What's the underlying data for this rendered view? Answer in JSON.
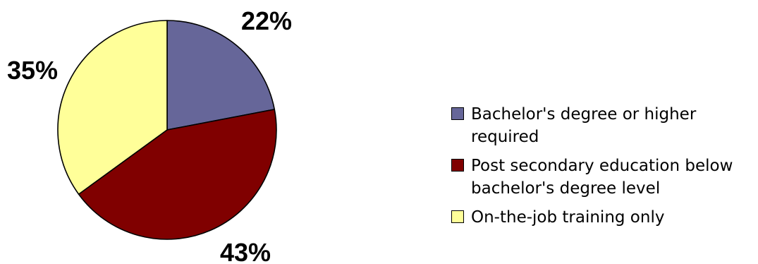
{
  "chart_data": {
    "type": "pie",
    "slices": [
      {
        "label": "Bachelor's degree or higher required",
        "value": 22,
        "value_label": "22%",
        "color": "#666699"
      },
      {
        "label": "Post secondary education below bachelor's degree level",
        "value": 43,
        "value_label": "43%",
        "color": "#800000"
      },
      {
        "label": "On-the-job training only",
        "value": 35,
        "value_label": "35%",
        "color": "#FFFF99"
      }
    ],
    "start_angle": "12 o'clock",
    "direction": "clockwise",
    "legend_position": "right"
  }
}
